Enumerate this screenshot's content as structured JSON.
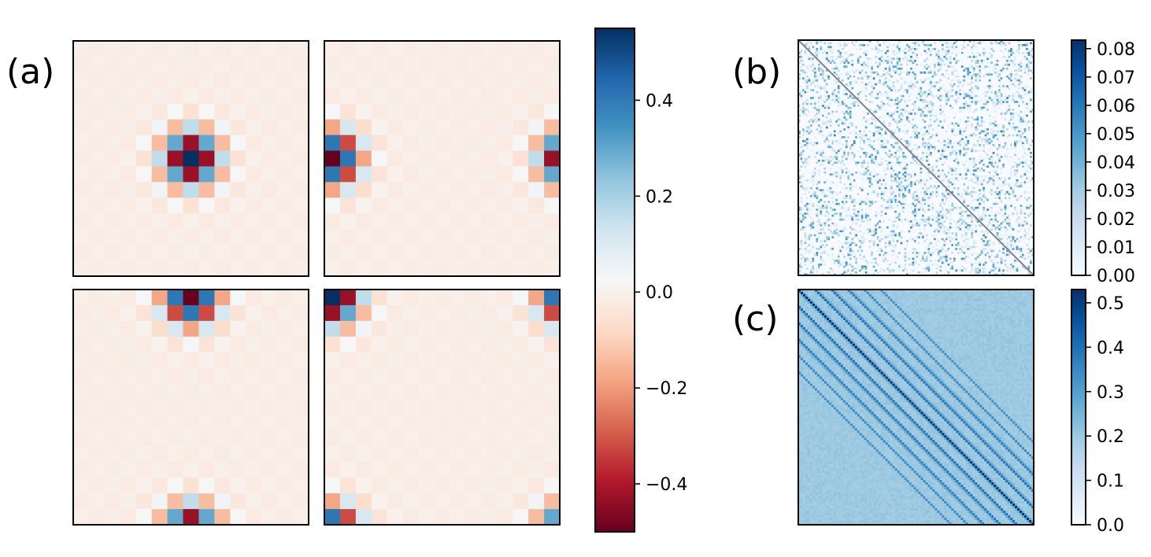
{
  "chart_data": [
    {
      "type": "heatmap",
      "panel_label": "(a)",
      "description_colormap": "RdBu",
      "grid_size": 15,
      "colorbar": {
        "range": [
          -0.5,
          0.55
        ],
        "ticks": [
          -0.4,
          -0.2,
          0.0,
          0.2,
          0.4
        ],
        "tick_labels": [
          "−0.4",
          "−0.2",
          "0.0",
          "0.2",
          "0.4"
        ]
      },
      "subplots": [
        {
          "id": "top-left",
          "peak_row": 7,
          "peak_col": 7
        },
        {
          "id": "top-right",
          "peak_row": 7,
          "peak_col": 0
        },
        {
          "id": "bottom-left",
          "peak_row": 0,
          "peak_col": 7
        },
        {
          "id": "bottom-right",
          "peak_row": 0,
          "peak_col": 0
        }
      ],
      "peak_amplitude": 0.55,
      "periodic": true
    },
    {
      "type": "heatmap",
      "panel_label": "(b)",
      "description_colormap": "Blues",
      "colorbar": {
        "range": [
          0.0,
          0.083
        ],
        "ticks": [
          0.0,
          0.01,
          0.02,
          0.03,
          0.04,
          0.05,
          0.06,
          0.07,
          0.08
        ],
        "tick_labels": [
          "0.00",
          "0.01",
          "0.02",
          "0.03",
          "0.04",
          "0.05",
          "0.06",
          "0.07",
          "0.08"
        ]
      },
      "diagonal_color": "#808080",
      "pattern": "sparse random"
    },
    {
      "type": "heatmap",
      "panel_label": "(c)",
      "description_colormap": "Blues",
      "colorbar": {
        "range": [
          0.0,
          0.53
        ],
        "ticks": [
          0.0,
          0.1,
          0.2,
          0.3,
          0.4,
          0.5
        ],
        "tick_labels": [
          "0.0",
          "0.1",
          "0.2",
          "0.3",
          "0.4",
          "0.5"
        ]
      },
      "pattern": "banded diagonal"
    }
  ]
}
